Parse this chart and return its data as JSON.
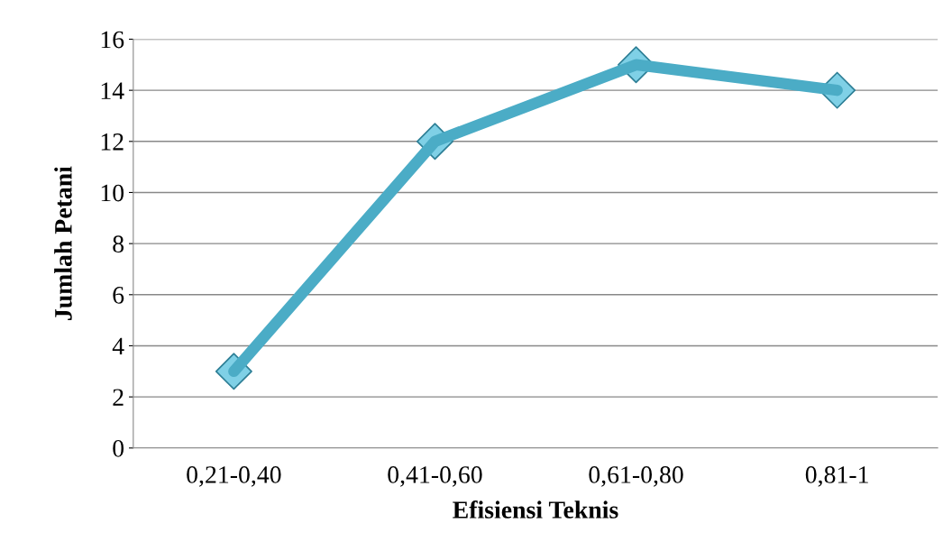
{
  "chart_data": {
    "type": "line",
    "xlabel": "Efisiensi Teknis",
    "ylabel": "Jumlah Petani",
    "categories": [
      "0,21-0,40",
      "0,41-0,60",
      "0,61-0,80",
      "0,81-1"
    ],
    "series": [
      {
        "color": "#4bacc6",
        "values": [
          3,
          12,
          15,
          14
        ]
      }
    ],
    "ylim": [
      0,
      16
    ],
    "yticks": [
      0,
      2,
      4,
      6,
      8,
      10,
      12,
      14,
      16
    ],
    "grid": "y",
    "legend": false,
    "marker": "diamond",
    "line_style": "solid"
  }
}
